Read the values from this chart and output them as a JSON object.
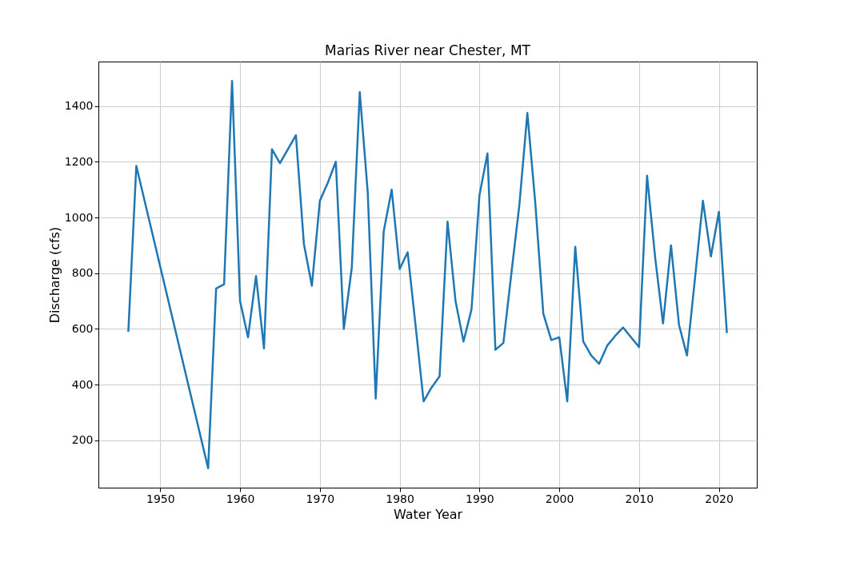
{
  "chart_data": {
    "type": "line",
    "title": "Marias River near Chester, MT",
    "xlabel": "Water Year",
    "ylabel": "Discharge (cfs)",
    "x": [
      1946,
      1947,
      1956,
      1957,
      1958,
      1959,
      1960,
      1961,
      1962,
      1963,
      1964,
      1965,
      1966,
      1967,
      1968,
      1969,
      1970,
      1971,
      1972,
      1973,
      1974,
      1975,
      1976,
      1977,
      1978,
      1979,
      1980,
      1981,
      1982,
      1983,
      1984,
      1985,
      1986,
      1987,
      1988,
      1989,
      1990,
      1991,
      1992,
      1993,
      1994,
      1995,
      1996,
      1997,
      1998,
      1999,
      2000,
      2001,
      2002,
      2003,
      2004,
      2005,
      2006,
      2007,
      2008,
      2009,
      2010,
      2011,
      2012,
      2013,
      2014,
      2015,
      2016,
      2017,
      2018,
      2019,
      2020,
      2021
    ],
    "series": [
      {
        "color": "#1f77b4",
        "values": [
          590,
          1185,
          100,
          745,
          760,
          1490,
          700,
          570,
          790,
          530,
          1245,
          1195,
          1245,
          1295,
          905,
          755,
          1060,
          1125,
          1200,
          600,
          820,
          1450,
          1090,
          350,
          950,
          1100,
          815,
          875,
          610,
          340,
          390,
          430,
          985,
          700,
          555,
          670,
          1080,
          1230,
          525,
          550,
          800,
          1045,
          1375,
          1050,
          655,
          560,
          570,
          340,
          895,
          555,
          505,
          475,
          540,
          575,
          605,
          570,
          535,
          1150,
          860,
          620,
          900,
          615,
          505,
          780,
          1060,
          860,
          1020,
          585
        ]
      }
    ],
    "xlim": [
      1942.25,
      2024.75
    ],
    "ylim": [
      30.5,
      1559.5
    ],
    "xticks": [
      1950,
      1960,
      1970,
      1980,
      1990,
      2000,
      2010,
      2020
    ],
    "yticks": [
      200,
      400,
      600,
      800,
      1000,
      1200,
      1400
    ],
    "grid": true,
    "marker": "none",
    "line_style": "solid"
  }
}
